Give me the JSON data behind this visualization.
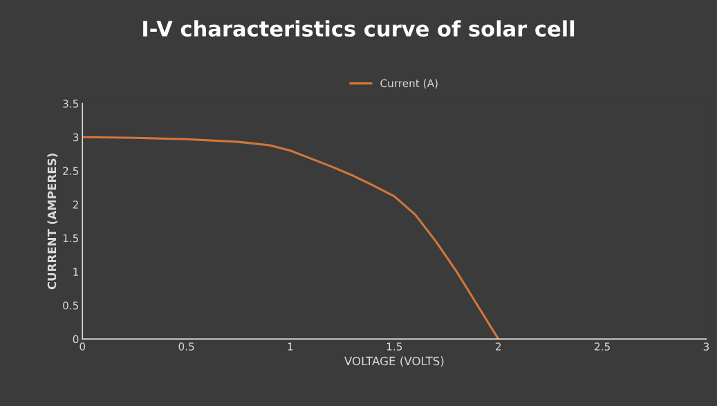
{
  "chart_data": {
    "type": "line",
    "title": "I-V characteristics curve of solar cell",
    "xlabel": "VOLTAGE (VOLTS)",
    "ylabel": "CURRENT (AMPERES)",
    "series": [
      {
        "name": "Current (A)",
        "color": "#d2773a",
        "x": [
          0,
          0.25,
          0.5,
          0.75,
          0.9,
          1,
          1.1,
          1.2,
          1.3,
          1.4,
          1.5,
          1.6,
          1.7,
          1.8,
          1.9,
          2
        ],
        "values": [
          3.0,
          2.99,
          2.97,
          2.93,
          2.88,
          2.8,
          2.68,
          2.56,
          2.43,
          2.28,
          2.12,
          1.85,
          1.45,
          1.0,
          0.5,
          0
        ]
      }
    ],
    "xlim": [
      0,
      3
    ],
    "xticks": [
      0,
      0.5,
      1,
      1.5,
      2,
      2.5,
      3
    ],
    "ylim": [
      0,
      3.5
    ],
    "yticks": [
      0,
      0.5,
      1,
      1.5,
      2,
      2.5,
      3,
      3.5
    ],
    "grid": false,
    "legend": "top",
    "marker": "none",
    "line_style": "solid"
  }
}
